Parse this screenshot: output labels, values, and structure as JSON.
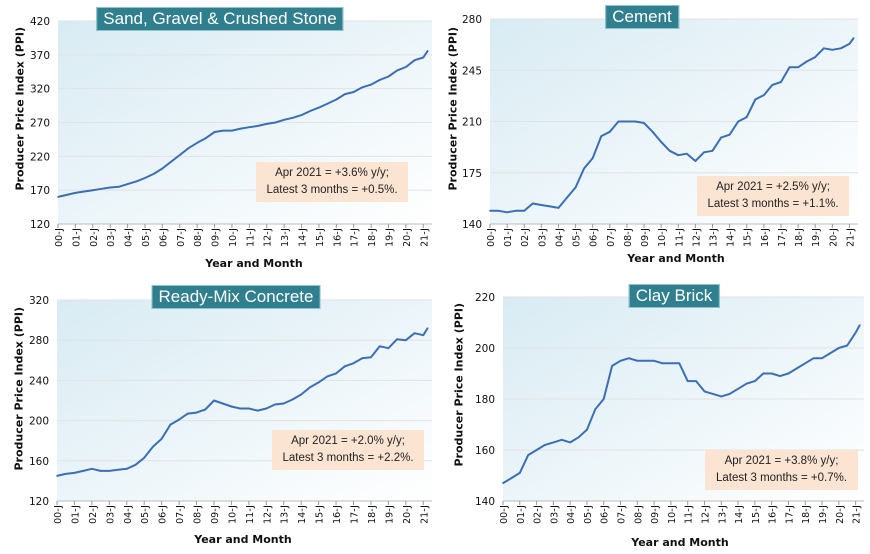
{
  "chart_data": [
    {
      "type": "line",
      "title": "Sand, Gravel & Crushed Stone",
      "xlabel": "Year and Month",
      "ylabel": "Producer Price Index (PPI)",
      "ylim": [
        120,
        420
      ],
      "yticks": [
        120,
        170,
        220,
        270,
        320,
        370,
        420
      ],
      "xticks": [
        "00-J",
        "01-J",
        "02-J",
        "03-J",
        "04-J",
        "05-J",
        "06-J",
        "07-J",
        "08-J",
        "09-J",
        "10-J",
        "11-J",
        "12-J",
        "13-J",
        "14-J",
        "15-J",
        "16-J",
        "17-J",
        "18-J",
        "19-J",
        "20-J",
        "21-J"
      ],
      "grid": true,
      "annotation": [
        "Apr 2021 = +3.6% y/y;",
        "Latest 3 months = +0.5%."
      ],
      "x": [
        "2000-01",
        "2000-07",
        "2001-01",
        "2001-07",
        "2002-01",
        "2002-07",
        "2003-01",
        "2003-07",
        "2004-01",
        "2004-07",
        "2005-01",
        "2005-07",
        "2006-01",
        "2006-07",
        "2007-01",
        "2007-07",
        "2008-01",
        "2008-07",
        "2009-01",
        "2009-07",
        "2010-01",
        "2010-07",
        "2011-01",
        "2011-07",
        "2012-01",
        "2012-07",
        "2013-01",
        "2013-07",
        "2014-01",
        "2014-07",
        "2015-01",
        "2015-07",
        "2016-01",
        "2016-07",
        "2017-01",
        "2017-07",
        "2018-01",
        "2018-07",
        "2019-01",
        "2019-07",
        "2020-01",
        "2020-07",
        "2021-01",
        "2021-04"
      ],
      "values": [
        160,
        163,
        166,
        168,
        170,
        172,
        174,
        175,
        179,
        183,
        188,
        194,
        202,
        212,
        222,
        232,
        240,
        247,
        256,
        258,
        258,
        261,
        263,
        265,
        268,
        270,
        274,
        277,
        281,
        287,
        292,
        298,
        304,
        312,
        315,
        322,
        326,
        333,
        338,
        347,
        352,
        362,
        366,
        376
      ]
    },
    {
      "type": "line",
      "title": "Cement",
      "xlabel": "Year and Month",
      "ylabel": "Producer Price Index (PPI)",
      "ylim": [
        140,
        280
      ],
      "yticks": [
        140,
        175,
        210,
        245,
        280
      ],
      "xticks": [
        "00-J",
        "01-J",
        "02-J",
        "03-J",
        "04-J",
        "05-J",
        "06-J",
        "07-J",
        "08-J",
        "09-J",
        "10-J",
        "11-J",
        "12-J",
        "13-J",
        "14-J",
        "15-J",
        "16-J",
        "17-J",
        "18-J",
        "19-J",
        "20-J",
        "21-J"
      ],
      "grid": true,
      "annotation": [
        "Apr 2021 = +2.5% y/y;",
        "Latest 3 months = +1.1%."
      ],
      "x": [
        "2000-01",
        "2000-07",
        "2001-01",
        "2001-07",
        "2002-01",
        "2002-07",
        "2003-01",
        "2003-07",
        "2004-01",
        "2004-07",
        "2005-01",
        "2005-07",
        "2006-01",
        "2006-07",
        "2007-01",
        "2007-07",
        "2008-01",
        "2008-07",
        "2009-01",
        "2009-07",
        "2010-01",
        "2010-07",
        "2011-01",
        "2011-07",
        "2012-01",
        "2012-07",
        "2013-01",
        "2013-07",
        "2014-01",
        "2014-07",
        "2015-01",
        "2015-07",
        "2016-01",
        "2016-07",
        "2017-01",
        "2017-07",
        "2018-01",
        "2018-07",
        "2019-01",
        "2019-07",
        "2020-01",
        "2020-07",
        "2021-01",
        "2021-04"
      ],
      "values": [
        149,
        149,
        148,
        149,
        149,
        154,
        153,
        152,
        151,
        158,
        165,
        178,
        185,
        200,
        203,
        210,
        210,
        210,
        209,
        203,
        196,
        190,
        187,
        188,
        183,
        189,
        190,
        199,
        201,
        210,
        213,
        225,
        228,
        235,
        237,
        247,
        247,
        251,
        254,
        260,
        259,
        260,
        263,
        267
      ]
    },
    {
      "type": "line",
      "title": "Ready-Mix Concrete",
      "xlabel": "Year and Month",
      "ylabel": "Producer Price Index (PPI)",
      "ylim": [
        120,
        320
      ],
      "yticks": [
        120,
        160,
        200,
        240,
        280,
        320
      ],
      "xticks": [
        "00-J",
        "01-J",
        "02-J",
        "03-J",
        "04-J",
        "05-J",
        "06-J",
        "07-J",
        "08-J",
        "09-J",
        "10-J",
        "11-J",
        "12-J",
        "13-J",
        "14-J",
        "15-J",
        "16-J",
        "17-J",
        "18-J",
        "19-J",
        "20-J",
        "21-J"
      ],
      "grid": true,
      "annotation": [
        "Apr 2021 = +2.0% y/y;",
        "Latest 3 months = +2.2%."
      ],
      "x": [
        "2000-01",
        "2000-07",
        "2001-01",
        "2001-07",
        "2002-01",
        "2002-07",
        "2003-01",
        "2003-07",
        "2004-01",
        "2004-07",
        "2005-01",
        "2005-07",
        "2006-01",
        "2006-07",
        "2007-01",
        "2007-07",
        "2008-01",
        "2008-07",
        "2009-01",
        "2009-07",
        "2010-01",
        "2010-07",
        "2011-01",
        "2011-07",
        "2012-01",
        "2012-07",
        "2013-01",
        "2013-07",
        "2014-01",
        "2014-07",
        "2015-01",
        "2015-07",
        "2016-01",
        "2016-07",
        "2017-01",
        "2017-07",
        "2018-01",
        "2018-07",
        "2019-01",
        "2019-07",
        "2020-01",
        "2020-07",
        "2021-01",
        "2021-04"
      ],
      "values": [
        145,
        147,
        148,
        150,
        152,
        150,
        150,
        151,
        152,
        156,
        163,
        174,
        182,
        196,
        201,
        207,
        208,
        211,
        220,
        217,
        214,
        212,
        212,
        210,
        212,
        216,
        217,
        221,
        226,
        233,
        238,
        244,
        247,
        254,
        257,
        262,
        263,
        274,
        272,
        281,
        280,
        287,
        285,
        292
      ]
    },
    {
      "type": "line",
      "title": "Clay Brick",
      "xlabel": "Year and Month",
      "ylabel": "Producer Price Index (PPI)",
      "ylim": [
        140,
        220
      ],
      "yticks": [
        140,
        160,
        180,
        200,
        220
      ],
      "xticks": [
        "00-J",
        "01-J",
        "02-J",
        "03-J",
        "04-J",
        "05-J",
        "06-J",
        "07-J",
        "08-J",
        "09-J",
        "10-J",
        "11-J",
        "12-J",
        "13-J",
        "14-J",
        "15-J",
        "16-J",
        "17-J",
        "18-J",
        "19-J",
        "20-J",
        "21-J"
      ],
      "grid": true,
      "annotation": [
        "Apr 2021 = +3.8% y/y;",
        "Latest 3 months = +0.7%."
      ],
      "x": [
        "2000-01",
        "2000-07",
        "2001-01",
        "2001-07",
        "2002-01",
        "2002-07",
        "2003-01",
        "2003-07",
        "2004-01",
        "2004-07",
        "2005-01",
        "2005-07",
        "2006-01",
        "2006-07",
        "2007-01",
        "2007-07",
        "2008-01",
        "2008-07",
        "2009-01",
        "2009-07",
        "2010-01",
        "2010-07",
        "2011-01",
        "2011-07",
        "2012-01",
        "2012-07",
        "2013-01",
        "2013-07",
        "2014-01",
        "2014-07",
        "2015-01",
        "2015-07",
        "2016-01",
        "2016-07",
        "2017-01",
        "2017-07",
        "2018-01",
        "2018-07",
        "2019-01",
        "2019-07",
        "2020-01",
        "2020-07",
        "2021-01",
        "2021-04"
      ],
      "values": [
        147,
        149,
        151,
        158,
        160,
        162,
        163,
        164,
        163,
        165,
        168,
        176,
        180,
        193,
        195,
        196,
        195,
        195,
        195,
        194,
        194,
        194,
        187,
        187,
        183,
        182,
        181,
        182,
        184,
        186,
        187,
        190,
        190,
        189,
        190,
        192,
        194,
        196,
        196,
        198,
        200,
        201,
        206,
        209
      ]
    }
  ],
  "colors": {
    "line": "#3a6fb8",
    "title_bg": "#2f7f8e",
    "note_bg": "#fce4d2",
    "plot_bg_top": "#d8ebf3"
  }
}
